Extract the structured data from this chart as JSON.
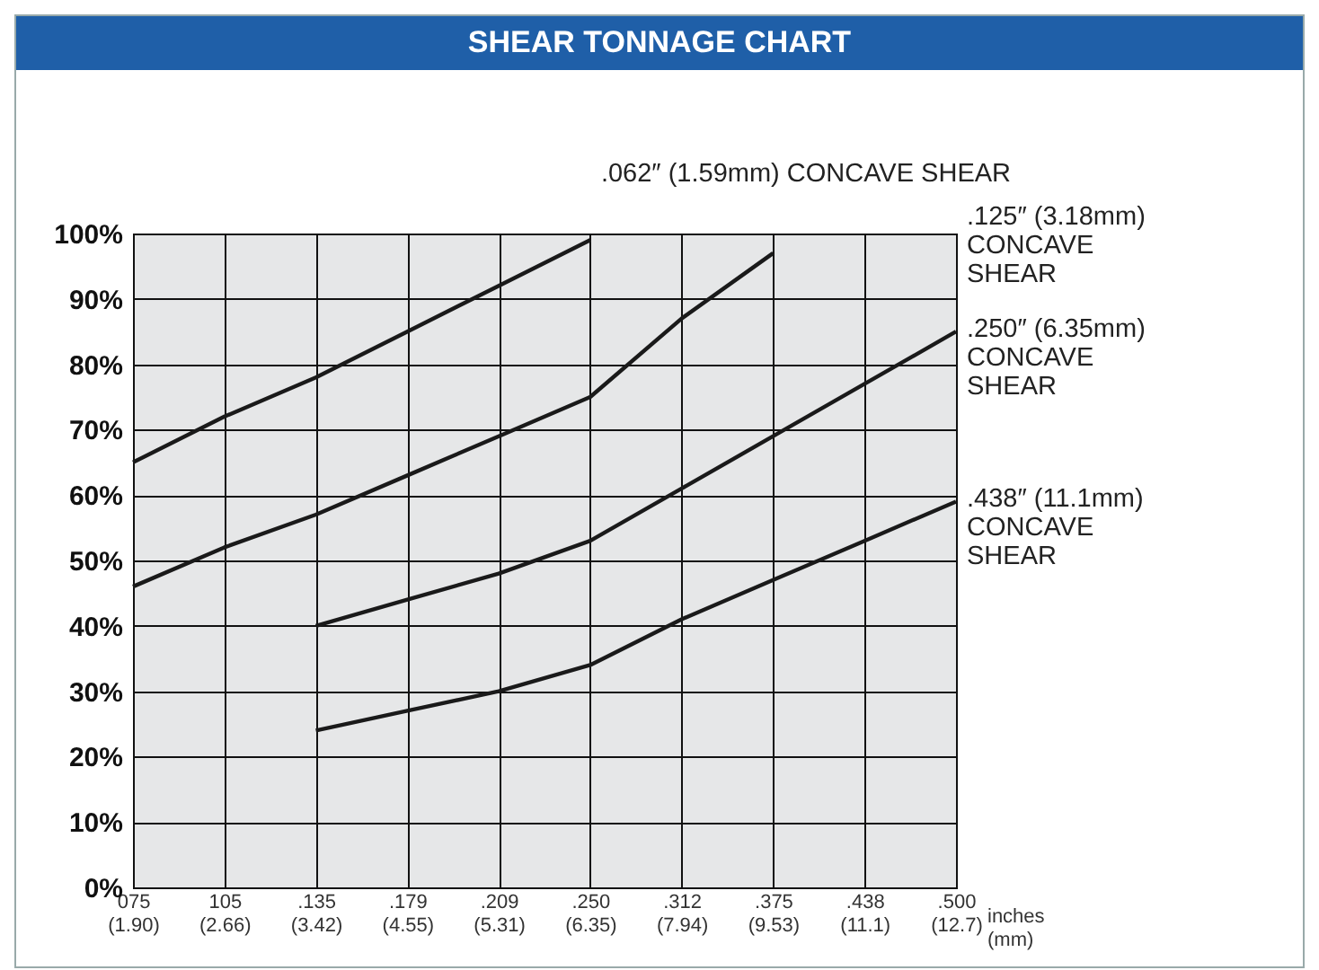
{
  "chart_data": {
    "type": "line",
    "title": "SHEAR TONNAGE CHART",
    "xlabel": "inches\n(mm)",
    "categories": [
      "075\n(1.90)",
      "105\n(2.66)",
      ".135\n(3.42)",
      ".179\n(4.55)",
      ".209\n(5.31)",
      ".250\n(6.35)",
      ".312\n(7.94)",
      ".375\n(9.53)",
      ".438\n(11.1)",
      ".500\n(12.7)"
    ],
    "series": [
      {
        "name": ".062″ (1.59mm) CONCAVE SHEAR",
        "color": "#1a1a1a",
        "values": [
          65,
          72,
          78,
          85,
          92,
          99,
          null,
          null,
          null,
          null
        ]
      },
      {
        "name": ".125″ (3.18mm) CONCAVE SHEAR",
        "color": "#1a1a1a",
        "values": [
          46,
          52,
          57,
          63,
          69,
          75,
          87,
          97,
          null,
          null
        ]
      },
      {
        "name": ".250″ (6.35mm) CONCAVE SHEAR",
        "color": "#1a1a1a",
        "values": [
          null,
          null,
          40,
          44,
          48,
          53,
          61,
          69,
          77,
          85
        ]
      },
      {
        "name": ".438″ (11.1mm) CONCAVE SHEAR",
        "color": "#1a1a1a",
        "values": [
          null,
          null,
          24,
          27,
          30,
          34,
          41,
          47,
          53,
          59
        ]
      }
    ],
    "ylim": [
      0,
      100
    ],
    "yticks": [
      {
        "value": 0,
        "label": "0%"
      },
      {
        "value": 10,
        "label": "10%"
      },
      {
        "value": 20,
        "label": "20%"
      },
      {
        "value": 30,
        "label": "30%"
      },
      {
        "value": 40,
        "label": "40%"
      },
      {
        "value": 50,
        "label": "50%"
      },
      {
        "value": 60,
        "label": "60%"
      },
      {
        "value": 70,
        "label": "70%"
      },
      {
        "value": 80,
        "label": "80%"
      },
      {
        "value": 90,
        "label": "90%"
      },
      {
        "value": 100,
        "label": "100%"
      }
    ],
    "grid": true,
    "legend": false,
    "line_style": "solid",
    "marker": "none"
  }
}
